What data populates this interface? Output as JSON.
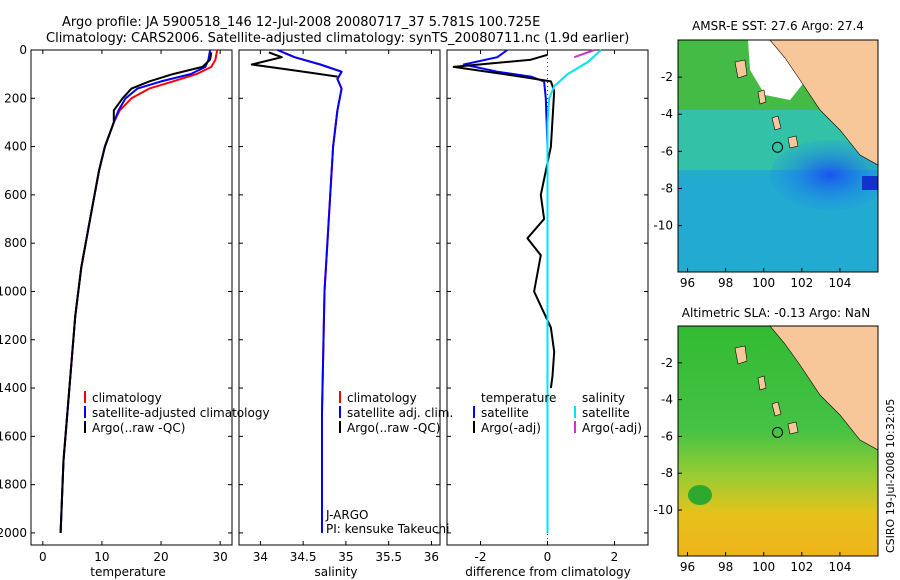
{
  "header": {
    "line1": "Argo profile: JA 5900518_146 12-Jul-2008 20080717_37 5.781S 100.725E",
    "line2": "Climatology: CARS2006. Satellite-adjusted climatology: synTS_20080711.nc (1.9d earlier)"
  },
  "colors": {
    "climatology": "#ff0000",
    "satellite": "#0000ff",
    "argo": "#000000",
    "salinity_satellite": "#00e5ee",
    "salinity_argo": "#cc33cc",
    "land": "#f7c79a"
  },
  "chart_data": [
    {
      "type": "line",
      "xlabel": "temperature",
      "xticks": [
        0,
        10,
        20,
        30
      ],
      "yticks": [
        0,
        200,
        400,
        600,
        800,
        1000,
        1200,
        1400,
        1600,
        1800,
        2000
      ],
      "xlim": [
        -2,
        32
      ],
      "ylim": [
        2050,
        0
      ],
      "legend": [
        "climatology",
        "satellite-adjusted climatology",
        "Argo(..raw -QC)"
      ],
      "series": [
        {
          "name": "climatology",
          "color": "#ff0000",
          "x": [
            29.5,
            29.2,
            28.5,
            26,
            22,
            18,
            15,
            13,
            12,
            10.5,
            9.5,
            8,
            6.5,
            5.5,
            4.5,
            3.5,
            3
          ],
          "y": [
            0,
            40,
            70,
            100,
            130,
            160,
            200,
            250,
            300,
            400,
            500,
            700,
            900,
            1100,
            1400,
            1700,
            2000
          ]
        },
        {
          "name": "satellite-adjusted climatology",
          "color": "#0000ff",
          "x": [
            28.3,
            28,
            27.5,
            25,
            20,
            16,
            14,
            12.8,
            12,
            10.5,
            9.5,
            8,
            6.5,
            5.5,
            4.5,
            3.5,
            3
          ],
          "y": [
            0,
            40,
            70,
            100,
            130,
            160,
            200,
            250,
            300,
            400,
            500,
            700,
            900,
            1100,
            1400,
            1700,
            2000
          ]
        },
        {
          "name": "Argo(..raw -QC)",
          "color": "#000000",
          "x": [
            28.5,
            28.3,
            27,
            22,
            18,
            15,
            13.5,
            12,
            12,
            10.5,
            9.5,
            8,
            6.5,
            5.5,
            4.5,
            3.5,
            3
          ],
          "y": [
            10,
            40,
            70,
            100,
            130,
            160,
            200,
            250,
            300,
            400,
            500,
            700,
            900,
            1100,
            1400,
            1700,
            2000
          ]
        }
      ]
    },
    {
      "type": "line",
      "xlabel": "salinity",
      "xticks": [
        34,
        34.5,
        35,
        35.5,
        36
      ],
      "yticks": [
        0,
        200,
        400,
        600,
        800,
        1000,
        1200,
        1400,
        1600,
        1800,
        2000
      ],
      "xlim": [
        33.75,
        36.1
      ],
      "ylim": [
        2050,
        0
      ],
      "legend": [
        "climatology",
        "satellite adj. clim.",
        "Argo(..raw -QC)"
      ],
      "annotation": [
        "J-ARGO",
        "PI: kensuke Takeuchi"
      ],
      "series": [
        {
          "name": "climatology",
          "color": "#ff0000",
          "x": [
            34.2,
            34.4,
            34.7,
            34.95,
            34.9,
            34.95,
            34.9,
            34.85,
            34.8,
            34.75,
            34.72,
            34.72
          ],
          "y": [
            0,
            30,
            60,
            90,
            120,
            160,
            250,
            400,
            700,
            1000,
            1500,
            2000
          ]
        },
        {
          "name": "satellite adj. clim.",
          "color": "#0000ff",
          "x": [
            34.2,
            34.4,
            34.7,
            34.95,
            34.9,
            34.95,
            34.9,
            34.85,
            34.8,
            34.75,
            34.72,
            34.72
          ],
          "y": [
            0,
            30,
            60,
            90,
            120,
            160,
            250,
            400,
            700,
            1000,
            1500,
            2000
          ]
        },
        {
          "name": "Argo(..raw -QC)",
          "color": "#000000",
          "x": [
            34.1,
            34.25,
            33.9,
            34.3,
            34.6,
            34.9
          ],
          "y": [
            10,
            30,
            60,
            80,
            95,
            110
          ]
        }
      ]
    },
    {
      "type": "line",
      "xlabel": "difference from climatology",
      "xticks": [
        -2,
        0,
        2
      ],
      "yticks": [
        0,
        200,
        400,
        600,
        800,
        1000,
        1200,
        1400,
        1600,
        1800,
        2000
      ],
      "xlim": [
        -3,
        3
      ],
      "ylim": [
        2050,
        0
      ],
      "legend_temperature_heading": "temperature",
      "legend_salinity_heading": "salinity",
      "legend": [
        "satellite",
        "Argo(-adj)",
        "satellite",
        "Argo(-adj)"
      ],
      "series": [
        {
          "name": "satellite",
          "color": "#0000ff",
          "x": [
            -1.2,
            -1.5,
            -2.5,
            -1.5,
            -0.5,
            -0.1,
            -0.05,
            0,
            0,
            0,
            0
          ],
          "y": [
            0,
            30,
            60,
            90,
            110,
            130,
            200,
            400,
            800,
            1400,
            2000
          ]
        },
        {
          "name": "Argo(-adj)",
          "color": "#000000",
          "x": [
            0,
            -0.5,
            -2.8,
            -0.8,
            0.1,
            0.2,
            0.1,
            -0.2,
            -0.1,
            -0.6,
            -0.2,
            -0.4,
            0.1,
            0.2,
            0.15,
            0.1
          ],
          "y": [
            20,
            40,
            70,
            110,
            130,
            170,
            400,
            600,
            700,
            780,
            850,
            1000,
            1150,
            1250,
            1350,
            1400
          ]
        },
        {
          "name": "satellite",
          "color": "#00e5ee",
          "x": [
            1.6,
            1.2,
            0.6,
            0.2,
            0.05,
            0,
            0,
            0
          ],
          "y": [
            0,
            50,
            100,
            150,
            200,
            300,
            1000,
            2000
          ]
        },
        {
          "name": "Argo(-adj)",
          "color": "#cc33cc",
          "x": [
            1.4,
            1.1,
            0.8
          ],
          "y": [
            0,
            15,
            30
          ]
        }
      ]
    },
    {
      "type": "heatmap",
      "title": "AMSR-E SST: 27.6 Argo: 27.4",
      "xticks": [
        96,
        98,
        100,
        102,
        104
      ],
      "yticks": [
        -2,
        -4,
        -6,
        -8,
        -10
      ],
      "xlim": [
        95.5,
        106
      ],
      "ylim": [
        -12.5,
        0
      ],
      "argo_location": {
        "lon": 100.725,
        "lat": -5.781
      }
    },
    {
      "type": "heatmap",
      "title": "Altimetric SLA: -0.13 Argo: NaN",
      "xticks": [
        96,
        98,
        100,
        102,
        104
      ],
      "yticks": [
        -2,
        -4,
        -6,
        -8,
        -10
      ],
      "xlim": [
        95.5,
        106
      ],
      "ylim": [
        -12.5,
        0
      ],
      "argo_location": {
        "lon": 100.725,
        "lat": -5.781
      }
    }
  ],
  "footer": {
    "stamp": "CSIRO 19-Jul-2008 10:32:05"
  }
}
